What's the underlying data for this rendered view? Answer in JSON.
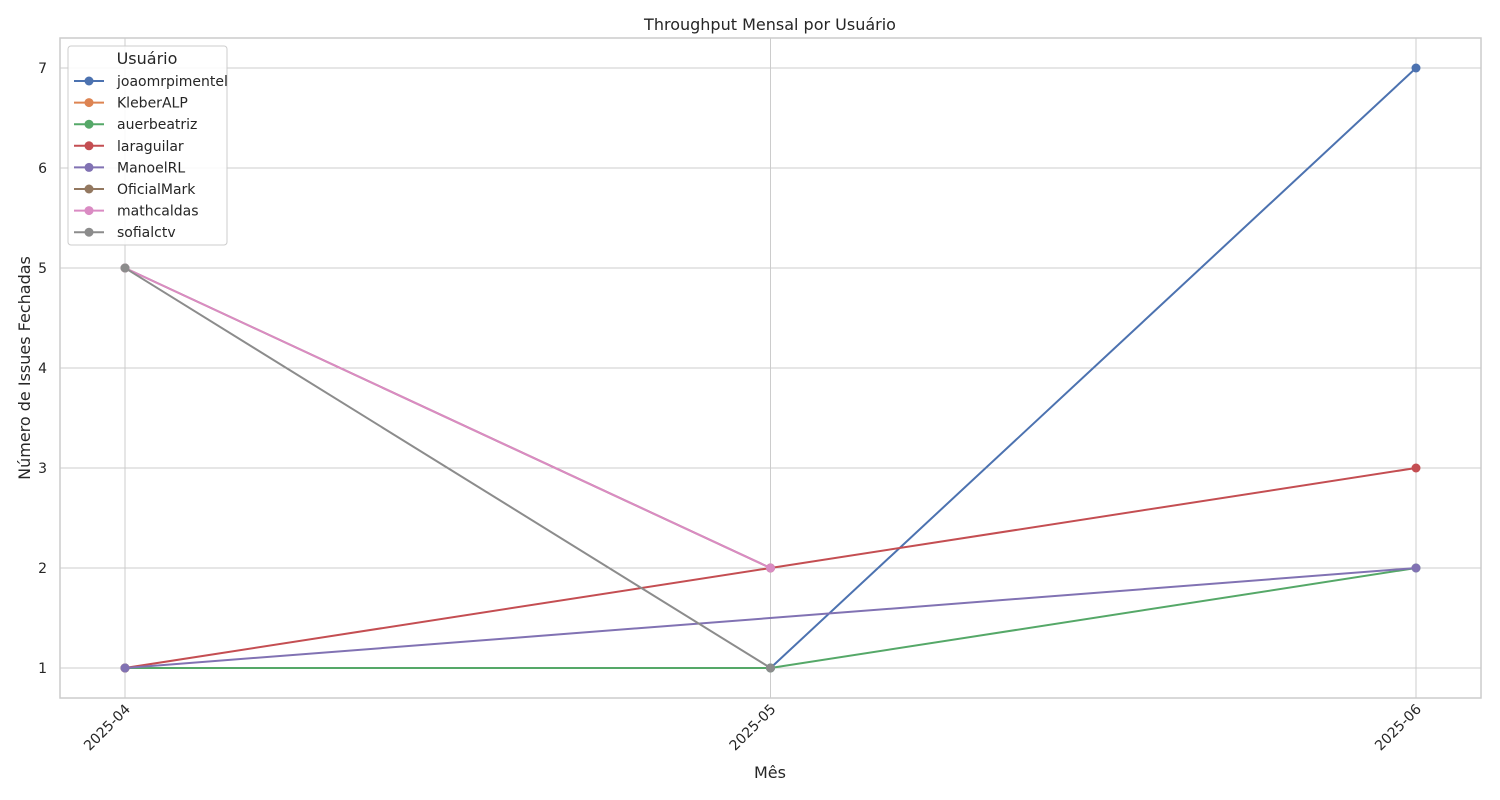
{
  "chart_data": {
    "type": "line",
    "title": "Throughput Mensal por Usuário",
    "xlabel": "Mês",
    "ylabel": "Número de Issues Fechadas",
    "x": [
      "2025-04",
      "2025-05",
      "2025-06"
    ],
    "ylim": [
      0.7,
      7.3
    ],
    "yticks": [
      1,
      2,
      3,
      4,
      5,
      6,
      7
    ],
    "grid": true,
    "legend": {
      "title": "Usuário",
      "placement": "top-left"
    },
    "series": [
      {
        "name": "joaomrpimentel",
        "color": "#4c72b0",
        "values": [
          null,
          1,
          7
        ]
      },
      {
        "name": "KleberALP",
        "color": "#dd8452",
        "values": [
          1,
          null,
          null
        ]
      },
      {
        "name": "auerbeatriz",
        "color": "#55a868",
        "values": [
          1,
          1,
          2
        ]
      },
      {
        "name": "laraguilar",
        "color": "#c44e52",
        "values": [
          1,
          2,
          3
        ]
      },
      {
        "name": "ManoelRL",
        "color": "#8172b3",
        "values": [
          1,
          null,
          2
        ]
      },
      {
        "name": "OficialMark",
        "color": "#937860",
        "values": [
          5,
          2,
          null
        ]
      },
      {
        "name": "mathcaldas",
        "color": "#da8bc3",
        "values": [
          5,
          2,
          null
        ]
      },
      {
        "name": "sofialctv",
        "color": "#8c8c8c",
        "values": [
          5,
          1,
          null
        ]
      }
    ]
  }
}
